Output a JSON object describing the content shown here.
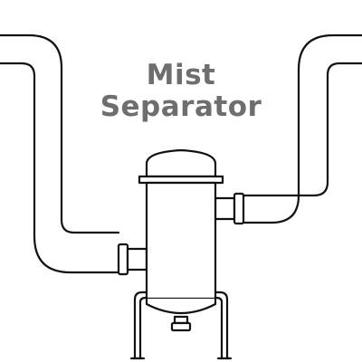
{
  "title": {
    "line1": "Mist",
    "line2": "Separator"
  },
  "colors": {
    "background": "#ffffff",
    "outline": "#111111",
    "title_text": "#6e6e6e"
  },
  "icons": {
    "vessel": "separator-vessel-icon",
    "pipes": "pipe-icon",
    "flanges": "flange-icon",
    "legs": "support-leg-icon",
    "drain": "drain-nozzle-icon"
  }
}
